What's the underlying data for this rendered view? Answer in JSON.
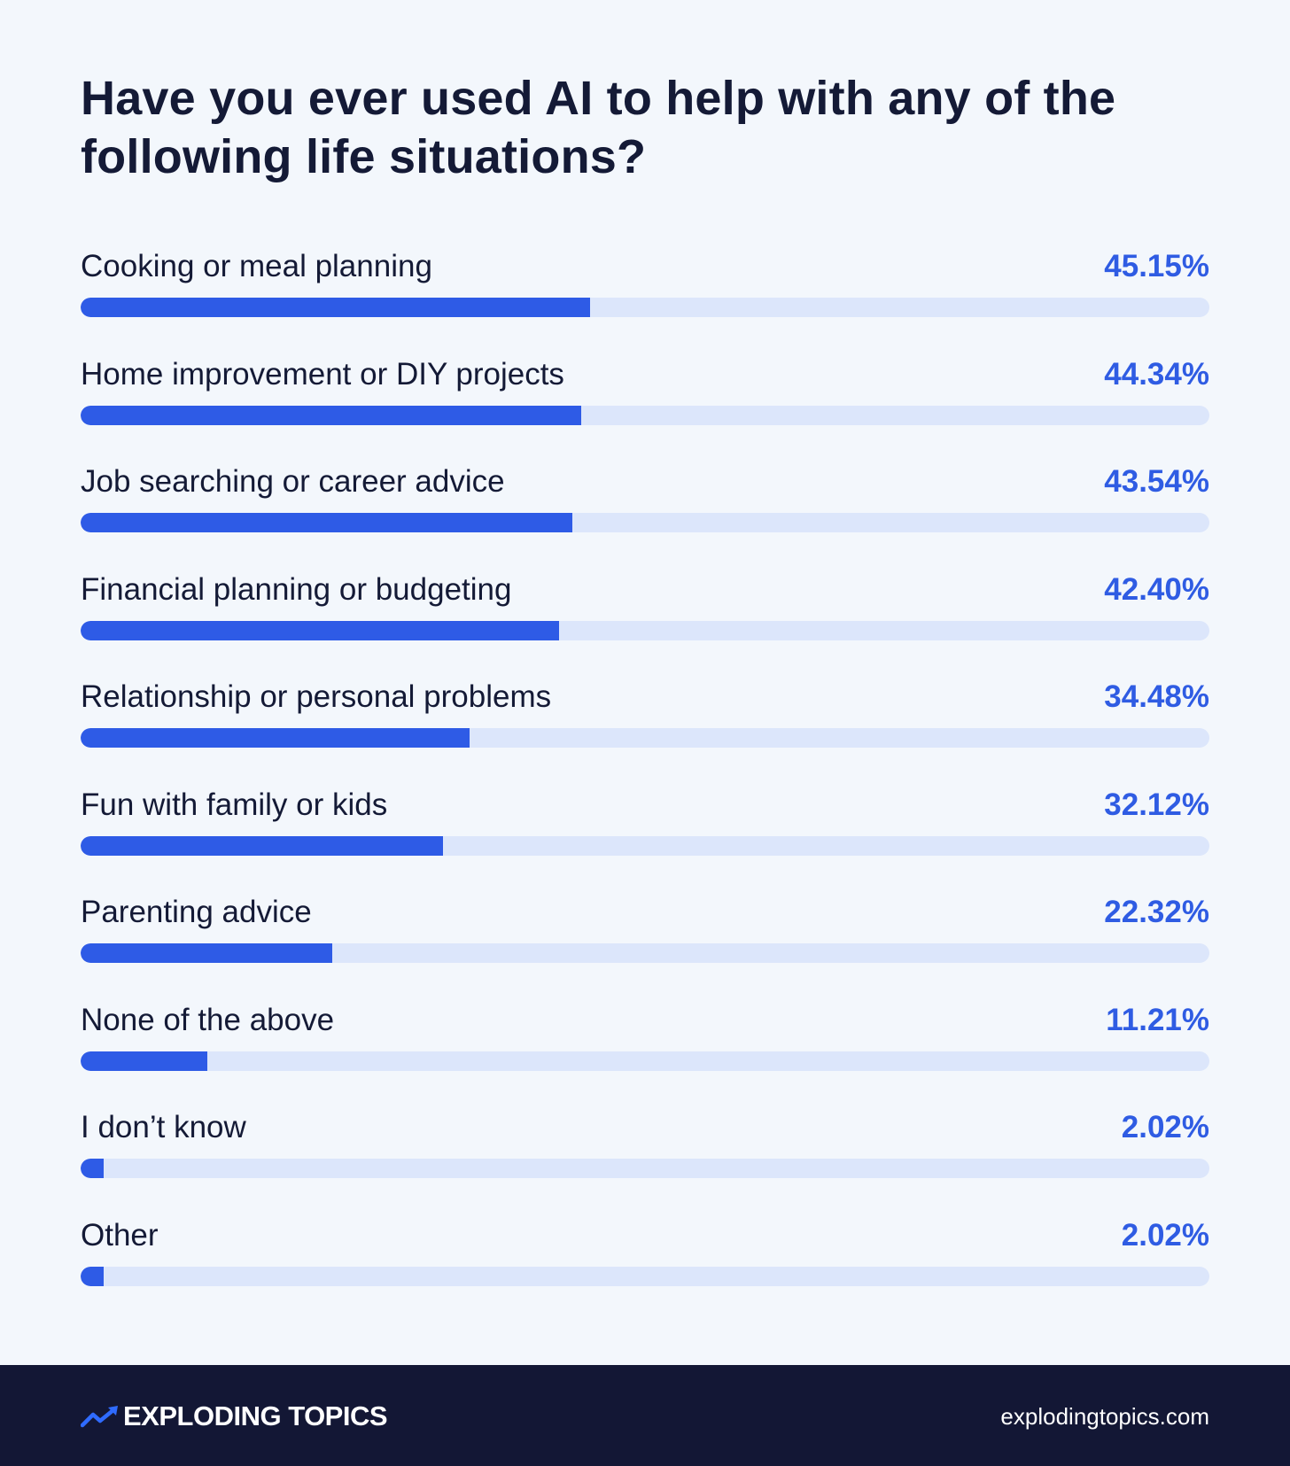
{
  "chart_data": {
    "type": "bar",
    "title": "Have you ever used AI to help with any of the following life situations?",
    "categories": [
      "Cooking or meal planning",
      "Home improvement or DIY projects",
      "Job searching or career advice",
      "Financial planning or budgeting",
      "Relationship or personal problems",
      "Fun with family or kids",
      "Parenting advice",
      "None of the above",
      "I don’t know",
      "Other"
    ],
    "values": [
      45.15,
      44.34,
      43.54,
      42.4,
      34.48,
      32.12,
      22.32,
      11.21,
      2.02,
      2.02
    ],
    "value_labels": [
      "45.15%",
      "44.34%",
      "43.54%",
      "42.40%",
      "34.48%",
      "32.12%",
      "22.32%",
      "11.21%",
      "2.02%",
      "2.02%"
    ],
    "xlim": [
      0,
      100
    ],
    "orientation": "horizontal",
    "grid": false,
    "colors": {
      "bar": "#2e5be6",
      "track": "#dce6fb",
      "value_text": "#2f5ce3",
      "label_text": "#141a36"
    }
  },
  "footer": {
    "brand": "EXPLODING TOPICS",
    "brand_icon": "trend-arrow-icon",
    "website": "explodingtopics.com",
    "background": "#131735"
  }
}
